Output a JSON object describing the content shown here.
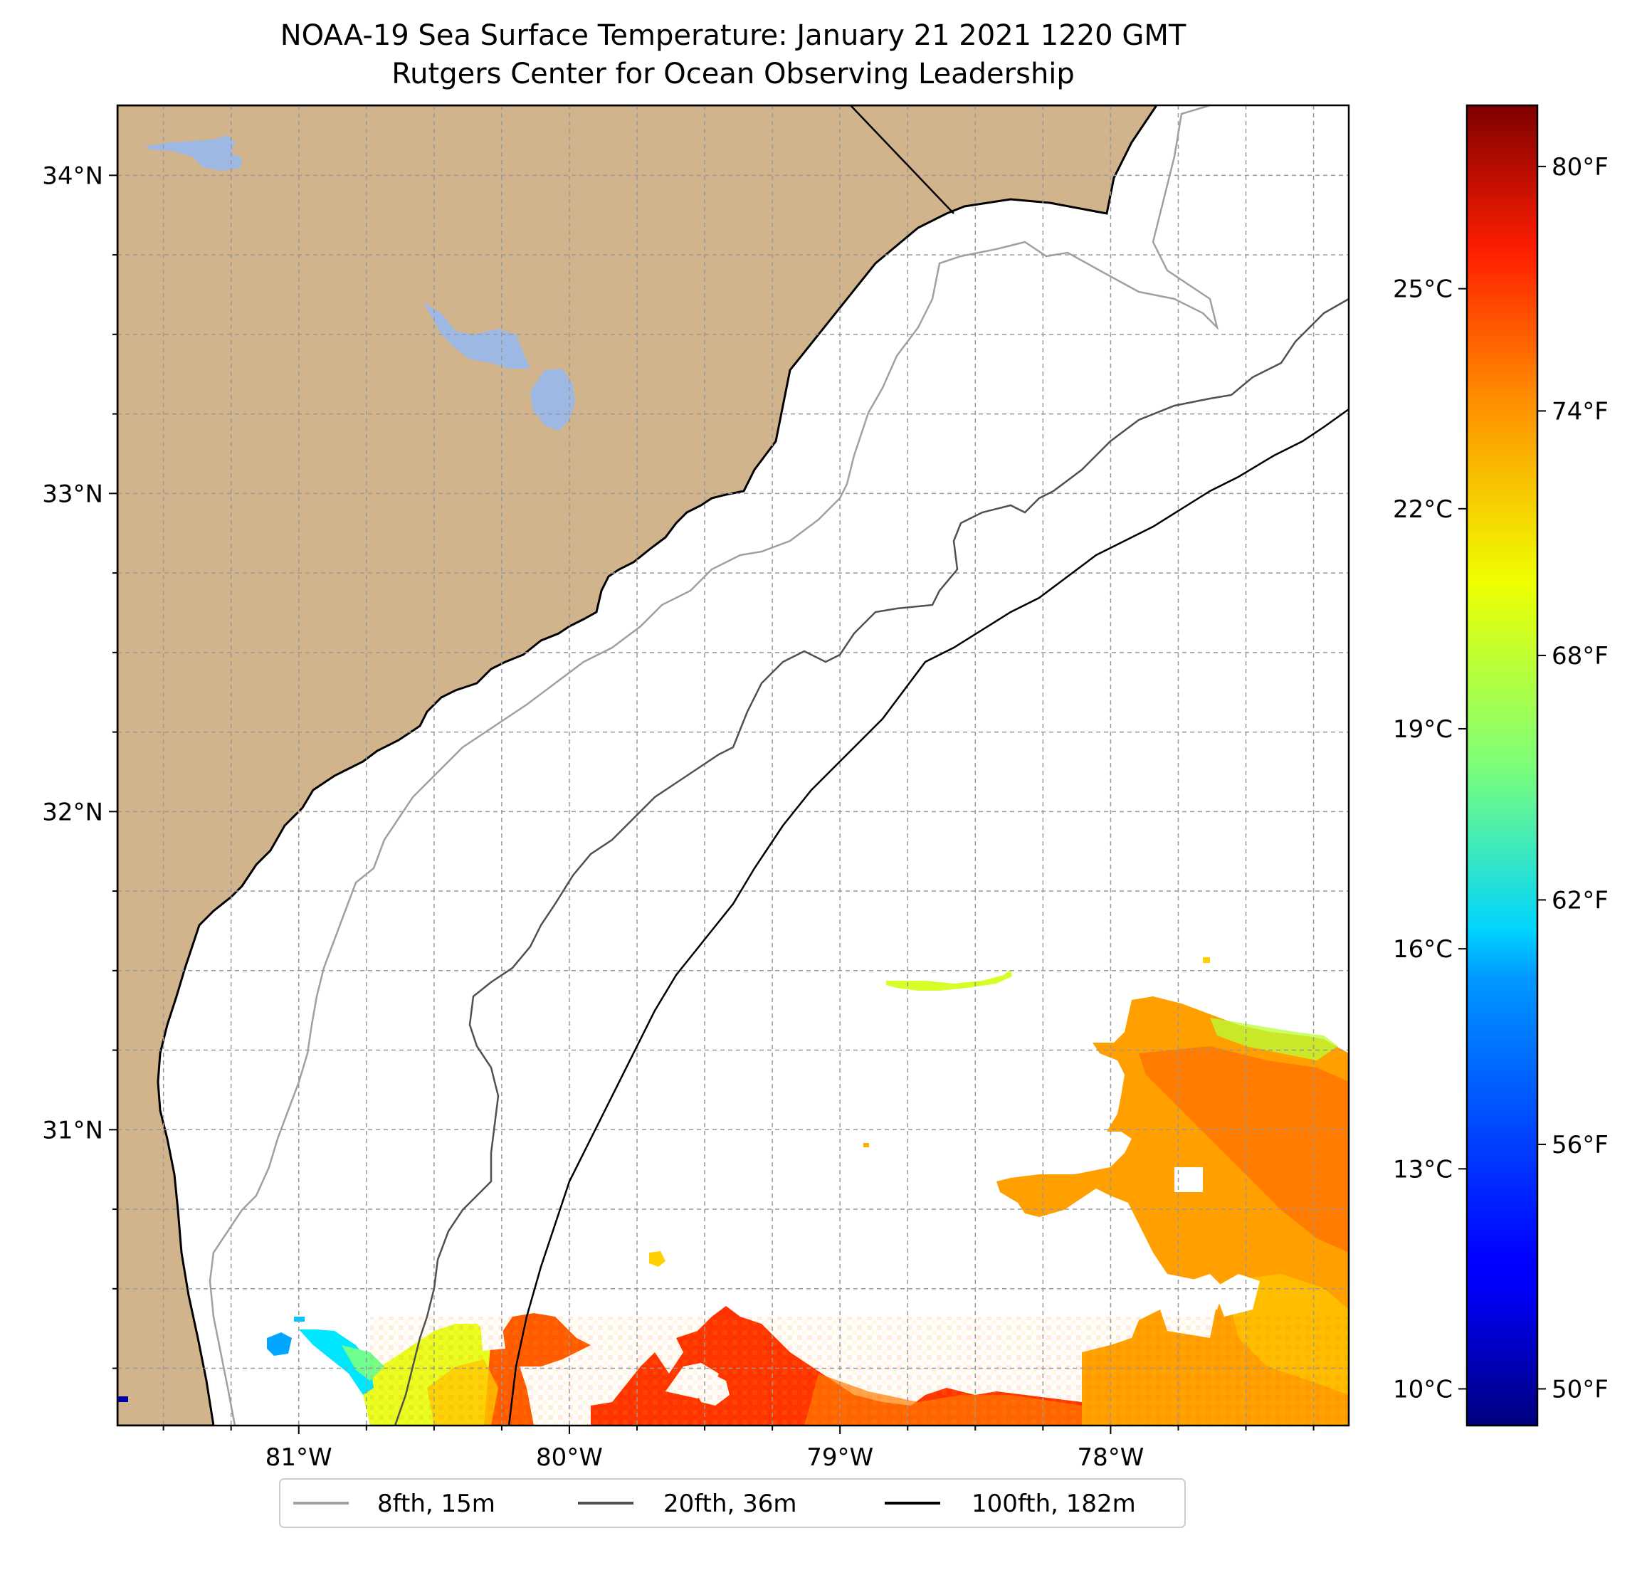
{
  "title": "NOAA-19 Sea Surface Temperature: January 21 2021 1220 GMT",
  "subtitle": "Rutgers Center for Ocean Observing Leadership",
  "map": {
    "lon_range": [
      -81.67,
      -77.12
    ],
    "lat_range": [
      30.07,
      34.22
    ],
    "lat_ticks": [
      {
        "value": 34,
        "label": "34°N"
      },
      {
        "value": 33,
        "label": "33°N"
      },
      {
        "value": 32,
        "label": "32°N"
      },
      {
        "value": 31,
        "label": "31°N"
      }
    ],
    "lon_ticks": [
      {
        "value": -81,
        "label": "81°W"
      },
      {
        "value": -80,
        "label": "80°W"
      },
      {
        "value": -79,
        "label": "79°W"
      },
      {
        "value": -78,
        "label": "78°W"
      }
    ],
    "grid": true,
    "land_color": "#d2b48c",
    "water_body_color": "#9db8e3"
  },
  "colorbar": {
    "colormap": "jet",
    "range_celsius": [
      9.5,
      27.5
    ],
    "celsius_ticks": [
      {
        "value": 10,
        "label": "10°C"
      },
      {
        "value": 13,
        "label": "13°C"
      },
      {
        "value": 16,
        "label": "16°C"
      },
      {
        "value": 19,
        "label": "19°C"
      },
      {
        "value": 22,
        "label": "22°C"
      },
      {
        "value": 25,
        "label": "25°C"
      }
    ],
    "fahrenheit_ticks": [
      {
        "value": 50,
        "label": "50°F"
      },
      {
        "value": 56,
        "label": "56°F"
      },
      {
        "value": 62,
        "label": "62°F"
      },
      {
        "value": 68,
        "label": "68°F"
      },
      {
        "value": 74,
        "label": "74°F"
      },
      {
        "value": 80,
        "label": "80°F"
      }
    ]
  },
  "legend": {
    "placement": "bottom-center",
    "items": [
      {
        "label": "8fth, 15m",
        "color": "#a0a0a0"
      },
      {
        "label": "20fth, 36m",
        "color": "#505050"
      },
      {
        "label": "100fth, 182m",
        "color": "#000000"
      }
    ]
  }
}
